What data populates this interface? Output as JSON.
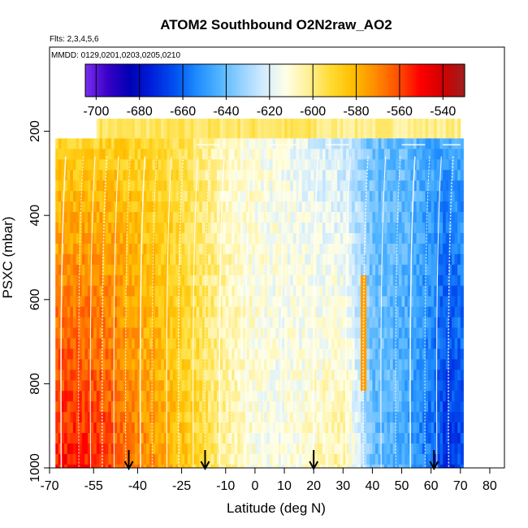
{
  "chart_data": {
    "type": "heatmap",
    "title": "ATOM2 Southbound O2N2raw_AO2",
    "subtitle_flights": "Flts: 2,3,4,5,6",
    "subtitle_dates": "MMDD: 0129,0201,0203,0205,0210",
    "xlabel": "Latitude (deg N)",
    "ylabel": "PSXC (mbar)",
    "xlim": [
      -70,
      85
    ],
    "ylim": [
      1000,
      0
    ],
    "xticks": [
      -70,
      -55,
      -40,
      -25,
      -10,
      0,
      10,
      20,
      30,
      40,
      50,
      60,
      70,
      80
    ],
    "xticklabels": [
      "-70",
      "-55",
      "-40",
      "-25",
      "-10",
      "0",
      "10",
      "20",
      "30",
      "40",
      "50",
      "60",
      "70",
      "80"
    ],
    "yticks": [
      200,
      400,
      600,
      800,
      1000
    ],
    "yticklabels": [
      "200",
      "400",
      "600",
      "800",
      "1000"
    ],
    "colorbar": {
      "min": -705,
      "max": -530,
      "ticks": [
        -700,
        -680,
        -660,
        -640,
        -620,
        -600,
        -580,
        -560,
        -540
      ],
      "ticklabels": [
        "-700",
        "-680",
        "-660",
        "-640",
        "-620",
        "-600",
        "-580",
        "-560",
        "-540"
      ],
      "colors": [
        "#7a2ef0",
        "#3a00c8",
        "#0000b4",
        "#0020dc",
        "#0050f0",
        "#1e8cff",
        "#50b4ff",
        "#96d2ff",
        "#d2ecff",
        "#ffffe6",
        "#fff096",
        "#ffdc32",
        "#ffbe00",
        "#ff8c00",
        "#ff5000",
        "#ff0000",
        "#d20000",
        "#a01e1e"
      ]
    },
    "data_extent": {
      "lat": [
        -68,
        71
      ],
      "pressure_top": 170,
      "pressure_bottom": 1000
    },
    "arrow_latitudes": [
      -43,
      -17,
      20,
      61
    ],
    "field_description_pattern": {
      "lat_nodes": [
        -68,
        -60,
        -50,
        -40,
        -30,
        -20,
        -10,
        0,
        10,
        20,
        30,
        40,
        50,
        60,
        65,
        71
      ],
      "surface_values": [
        -552,
        -552,
        -558,
        -570,
        -578,
        -590,
        -603,
        -612,
        -613,
        -608,
        -603,
        -640,
        -645,
        -660,
        -672,
        -665
      ],
      "upper_values": [
        -590,
        -590,
        -588,
        -590,
        -593,
        -600,
        -608,
        -612,
        -615,
        -620,
        -625,
        -640,
        -640,
        -645,
        -648,
        -645
      ],
      "top_band_value": -597
    }
  }
}
